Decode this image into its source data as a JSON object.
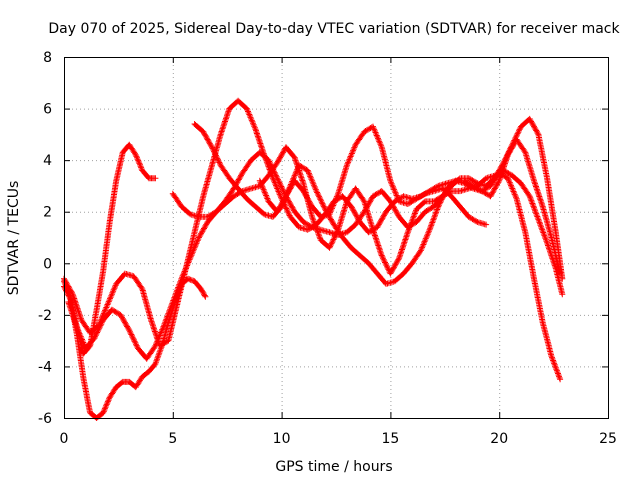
{
  "chart_data": {
    "type": "scatter",
    "title": "Day 070 of 2025, Sidereal Day-to-day VTEC variation (SDTVAR) for receiver mack",
    "xlabel": "GPS time / hours",
    "ylabel": "SDTVAR / TECUs",
    "xlim": [
      0,
      25
    ],
    "ylim": [
      -6,
      8
    ],
    "xticks": [
      "0",
      "5",
      "10",
      "15",
      "20",
      "25"
    ],
    "yticks": [
      "-6",
      "-4",
      "-2",
      "0",
      "2",
      "4",
      "6",
      "8"
    ],
    "xtick_values": [
      0,
      5,
      10,
      15,
      20,
      25
    ],
    "ytick_values": [
      -6,
      -4,
      -2,
      0,
      2,
      4,
      6,
      8
    ],
    "grid": true,
    "marker": "+",
    "color": "#ff0000",
    "series": [
      {
        "x": [
          0.0,
          0.3,
          0.6,
          0.9,
          1.2,
          1.5,
          1.8,
          2.1,
          2.4,
          2.7,
          3.0,
          3.3,
          3.6,
          3.9,
          4.2
        ],
        "y": [
          -0.7,
          -1.3,
          -2.5,
          -3.5,
          -3.2,
          -1.8,
          -0.3,
          1.6,
          3.2,
          4.3,
          4.6,
          4.2,
          3.6,
          3.3,
          3.3
        ]
      },
      {
        "x": [
          0.0,
          0.3,
          0.6,
          0.9,
          1.2,
          1.5,
          1.8,
          2.1,
          2.4,
          2.7,
          3.0,
          3.3,
          3.6,
          3.9,
          4.2,
          4.5,
          4.8,
          5.1,
          5.4,
          5.7,
          6.0,
          6.3,
          6.5
        ],
        "y": [
          -0.9,
          -1.4,
          -2.8,
          -4.5,
          -5.8,
          -6.0,
          -5.8,
          -5.2,
          -4.8,
          -4.6,
          -4.6,
          -4.8,
          -4.4,
          -4.2,
          -3.9,
          -3.2,
          -2.3,
          -1.5,
          -0.8,
          -0.6,
          -0.7,
          -1.0,
          -1.3
        ]
      },
      {
        "x": [
          0.0,
          0.4,
          0.8,
          1.2,
          1.6,
          2.0,
          2.4,
          2.8,
          3.2,
          3.6,
          4.0,
          4.4,
          4.8,
          5.2,
          5.6,
          6.0,
          6.4,
          6.8,
          7.2,
          7.6,
          8.0,
          8.4,
          8.8,
          9.2,
          9.6,
          10.0,
          10.4,
          10.8,
          11.2,
          11.6,
          12.0,
          12.4,
          12.8,
          13.2,
          13.6,
          14.0,
          14.4,
          14.8,
          15.2,
          15.6,
          16.0,
          16.4,
          16.8,
          17.2,
          17.6,
          18.0,
          18.4,
          18.8,
          19.2,
          19.6,
          20.0,
          20.4,
          20.8,
          21.2,
          21.6,
          22.0,
          22.4,
          22.8
        ],
        "y": [
          -0.6,
          -1.2,
          -2.2,
          -2.7,
          -2.4,
          -1.6,
          -0.8,
          -0.4,
          -0.5,
          -1.0,
          -2.2,
          -3.2,
          -3.0,
          -1.6,
          -0.2,
          1.2,
          2.6,
          3.8,
          5.0,
          6.0,
          6.3,
          6.0,
          5.2,
          4.2,
          3.3,
          2.5,
          1.8,
          1.4,
          1.3,
          1.5,
          1.9,
          2.4,
          2.6,
          2.2,
          1.6,
          1.2,
          1.4,
          2.0,
          2.4,
          2.6,
          2.5,
          2.6,
          2.8,
          3.0,
          3.1,
          3.2,
          3.2,
          3.0,
          2.8,
          2.6,
          3.2,
          4.2,
          4.8,
          4.3,
          3.2,
          2.2,
          1.0,
          -0.4
        ]
      },
      {
        "x": [
          0.2,
          0.6,
          1.0,
          1.4,
          1.8,
          2.2,
          2.6,
          3.0,
          3.4,
          3.8,
          4.2,
          4.6,
          5.0,
          5.4,
          5.8,
          6.2,
          6.6,
          7.0,
          7.4,
          7.8,
          8.2,
          8.6,
          9.0,
          9.4,
          9.8,
          10.2,
          10.6,
          11.0,
          11.4,
          11.8,
          12.2,
          12.6,
          13.0,
          13.4,
          13.8,
          14.2,
          14.6,
          15.0,
          15.4,
          15.8,
          16.2,
          16.6,
          17.0,
          17.4,
          17.8,
          18.2,
          18.6,
          19.0,
          19.4,
          19.8,
          20.2,
          20.6,
          21.0,
          21.4,
          21.8,
          22.2,
          22.6,
          22.9
        ],
        "y": [
          -1.5,
          -2.5,
          -3.3,
          -2.9,
          -2.2,
          -1.8,
          -2.0,
          -2.6,
          -3.3,
          -3.7,
          -3.2,
          -2.4,
          -1.5,
          -0.6,
          0.2,
          1.0,
          1.6,
          2.0,
          2.4,
          2.9,
          3.5,
          4.0,
          4.3,
          4.0,
          3.3,
          2.6,
          2.0,
          1.6,
          1.4,
          1.3,
          1.2,
          1.1,
          1.2,
          1.5,
          2.0,
          2.6,
          2.8,
          2.4,
          1.8,
          1.4,
          1.6,
          2.0,
          2.2,
          2.6,
          2.8,
          2.8,
          2.9,
          3.0,
          3.3,
          3.4,
          3.6,
          3.4,
          3.1,
          2.6,
          1.7,
          0.8,
          -0.2,
          -1.2
        ]
      },
      {
        "x": [
          5.0,
          5.4,
          5.8,
          6.2,
          6.6,
          7.0,
          7.4,
          7.8,
          8.2,
          8.6,
          9.0,
          9.4,
          9.8,
          10.2,
          10.6,
          11.0,
          11.4,
          11.8,
          12.2,
          12.6,
          13.0,
          13.4,
          13.8,
          14.2,
          14.6,
          15.0,
          15.4,
          15.8,
          16.2,
          16.6,
          17.0,
          17.4,
          17.8,
          18.2,
          18.6,
          19.0,
          19.4,
          19.8,
          20.2,
          20.6,
          21.0,
          21.4,
          21.8,
          22.2,
          22.6,
          22.9
        ],
        "y": [
          2.7,
          2.2,
          1.9,
          1.8,
          1.8,
          2.0,
          2.3,
          2.6,
          2.8,
          2.9,
          3.0,
          3.4,
          3.9,
          4.5,
          4.1,
          3.1,
          1.8,
          0.9,
          0.6,
          1.3,
          2.4,
          2.9,
          2.4,
          1.3,
          0.3,
          -0.4,
          0.2,
          1.2,
          2.1,
          2.4,
          2.4,
          2.6,
          3.0,
          3.3,
          3.3,
          3.1,
          3.0,
          3.3,
          3.9,
          4.6,
          5.3,
          5.6,
          5.0,
          3.3,
          1.2,
          -0.6
        ]
      },
      {
        "x": [
          6.0,
          6.4,
          6.8,
          7.2,
          7.6,
          8.0,
          8.4,
          8.8,
          9.2,
          9.6,
          10.0,
          10.4,
          10.8,
          11.2,
          11.6,
          12.0,
          12.4,
          12.8,
          13.2,
          13.6,
          14.0,
          14.4,
          14.8,
          15.2,
          15.6,
          16.0,
          16.4,
          16.8,
          17.2,
          17.6,
          18.0,
          18.4,
          18.8,
          19.2,
          19.6,
          20.0,
          20.4,
          20.8,
          21.2,
          21.6,
          22.0,
          22.4,
          22.8
        ],
        "y": [
          5.4,
          5.1,
          4.5,
          3.8,
          3.3,
          2.9,
          2.5,
          2.2,
          1.9,
          1.8,
          2.2,
          3.0,
          3.8,
          3.6,
          2.8,
          2.1,
          1.5,
          1.0,
          0.6,
          0.3,
          0.0,
          -0.4,
          -0.8,
          -0.7,
          -0.4,
          0.0,
          0.5,
          1.3,
          2.2,
          2.9,
          3.2,
          3.1,
          2.9,
          2.8,
          3.0,
          3.5,
          3.3,
          2.5,
          1.2,
          -0.6,
          -2.3,
          -3.6,
          -4.5
        ]
      },
      {
        "x": [
          9.0,
          9.4,
          9.8,
          10.2,
          10.6,
          11.0,
          11.4,
          11.8,
          12.2,
          12.6,
          13.0,
          13.4,
          13.8,
          14.2,
          14.6,
          15.0,
          15.4,
          15.8,
          16.2,
          16.6,
          17.0,
          17.4,
          17.8,
          18.2,
          18.6,
          19.0,
          19.4
        ],
        "y": [
          3.2,
          2.4,
          2.0,
          2.6,
          3.2,
          2.8,
          2.2,
          1.8,
          1.9,
          2.7,
          3.8,
          4.6,
          5.1,
          5.3,
          4.5,
          3.2,
          2.4,
          2.3,
          2.5,
          2.7,
          2.8,
          2.9,
          2.6,
          2.2,
          1.8,
          1.6,
          1.5
        ]
      }
    ]
  }
}
